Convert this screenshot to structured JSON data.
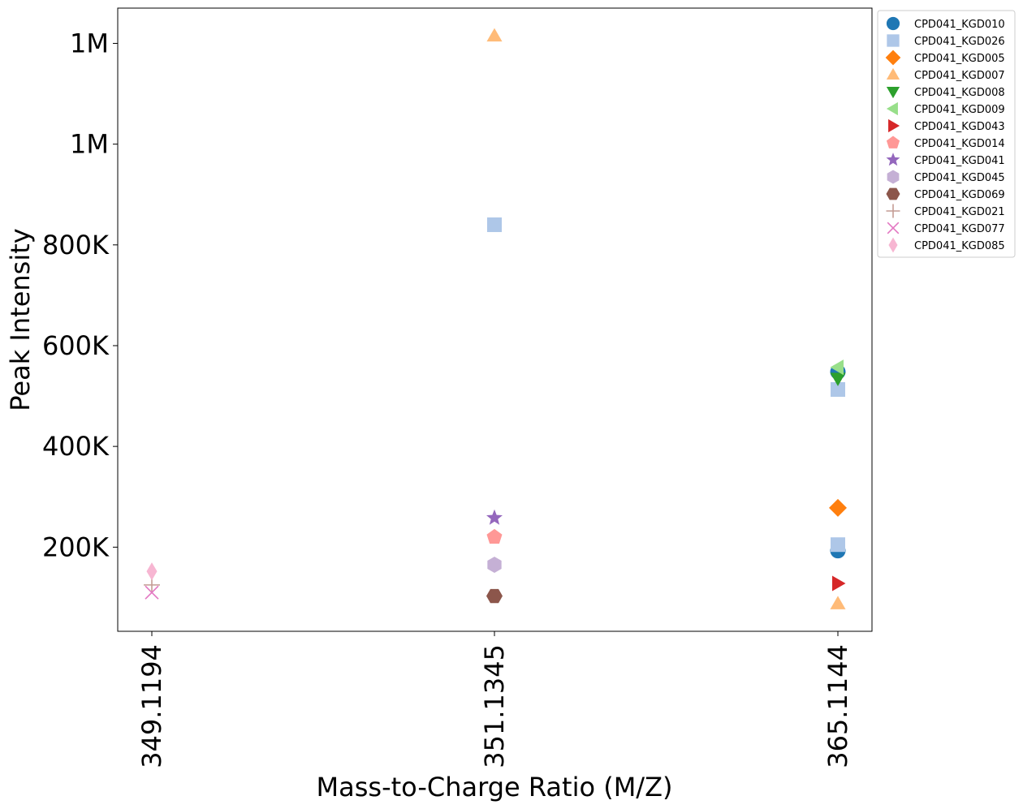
{
  "chart_data": {
    "type": "scatter",
    "xlabel": "Mass-to-Charge Ratio (M/Z)",
    "ylabel": "Peak Intensity",
    "categories": [
      "349.1194",
      "351.1345",
      "365.1144"
    ],
    "y_ticks": [
      {
        "value": 200000,
        "label": "200K"
      },
      {
        "value": 400000,
        "label": "400K"
      },
      {
        "value": 600000,
        "label": "600K"
      },
      {
        "value": 800000,
        "label": "800K"
      },
      {
        "value": 1000000,
        "label": "1M"
      },
      {
        "value": 1200000,
        "label": "1M"
      }
    ],
    "ylim": [
      33000,
      1270000
    ],
    "legend_position": "outside-top-right",
    "grid": false,
    "series": [
      {
        "name": "CPD041_KGD010",
        "color": "#1f77b4",
        "marker": "circle",
        "points": [
          {
            "x": "365.1144",
            "y": 548000
          },
          {
            "x": "365.1144",
            "y": 193000
          }
        ]
      },
      {
        "name": "CPD041_KGD026",
        "color": "#aec7e8",
        "marker": "square",
        "points": [
          {
            "x": "351.1345",
            "y": 840000
          },
          {
            "x": "365.1144",
            "y": 513000
          },
          {
            "x": "365.1144",
            "y": 205000
          }
        ]
      },
      {
        "name": "CPD041_KGD005",
        "color": "#ff7f0e",
        "marker": "diamond",
        "points": [
          {
            "x": "365.1144",
            "y": 278000
          }
        ]
      },
      {
        "name": "CPD041_KGD007",
        "color": "#ffbb78",
        "marker": "triangle-up",
        "points": [
          {
            "x": "351.1345",
            "y": 1215000
          },
          {
            "x": "365.1144",
            "y": 88000
          }
        ]
      },
      {
        "name": "CPD041_KGD008",
        "color": "#2ca02c",
        "marker": "triangle-down",
        "points": [
          {
            "x": "365.1144",
            "y": 535000
          }
        ]
      },
      {
        "name": "CPD041_KGD009",
        "color": "#98df8a",
        "marker": "triangle-left",
        "points": [
          {
            "x": "365.1144",
            "y": 557000
          }
        ]
      },
      {
        "name": "CPD041_KGD043",
        "color": "#d62728",
        "marker": "triangle-right",
        "points": [
          {
            "x": "365.1144",
            "y": 128000
          }
        ]
      },
      {
        "name": "CPD041_KGD014",
        "color": "#ff9896",
        "marker": "pentagon",
        "points": [
          {
            "x": "351.1345",
            "y": 220000
          }
        ]
      },
      {
        "name": "CPD041_KGD041",
        "color": "#9467bd",
        "marker": "star",
        "points": [
          {
            "x": "351.1345",
            "y": 258000
          }
        ]
      },
      {
        "name": "CPD041_KGD045",
        "color": "#c5b0d5",
        "marker": "hexagon",
        "points": [
          {
            "x": "351.1345",
            "y": 165000
          }
        ]
      },
      {
        "name": "CPD041_KGD069",
        "color": "#8c564b",
        "marker": "octagon",
        "points": [
          {
            "x": "351.1345",
            "y": 103000
          }
        ]
      },
      {
        "name": "CPD041_KGD021",
        "color": "#c49c94",
        "marker": "plus",
        "points": [
          {
            "x": "349.1194",
            "y": 125000
          }
        ]
      },
      {
        "name": "CPD041_KGD077",
        "color": "#e377c2",
        "marker": "x",
        "points": [
          {
            "x": "349.1194",
            "y": 110000
          }
        ]
      },
      {
        "name": "CPD041_KGD085",
        "color": "#f7b6d2",
        "marker": "thin-diamond",
        "points": [
          {
            "x": "349.1194",
            "y": 152000
          }
        ]
      }
    ]
  }
}
